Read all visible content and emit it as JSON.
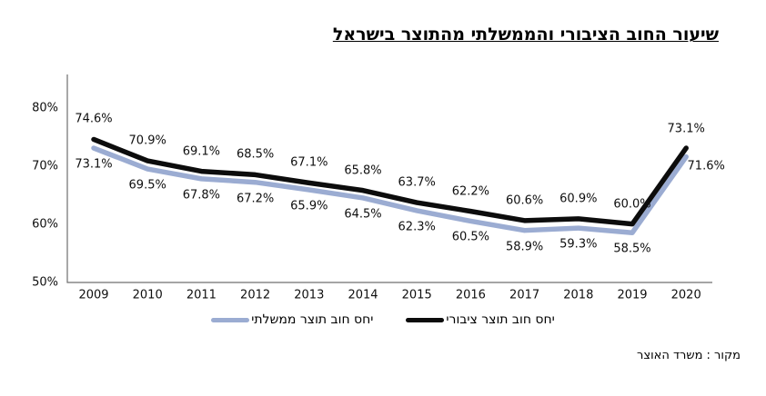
{
  "source_note": "מקור : משרד האוצר",
  "chart_data": {
    "type": "line",
    "title": "שיעור החוב הציבורי והממשלתי מהתוצר בישראל",
    "categories": [
      "2009",
      "2010",
      "2011",
      "2012",
      "2013",
      "2014",
      "2015",
      "2016",
      "2017",
      "2018",
      "2019",
      "2020"
    ],
    "series": [
      {
        "name": "יחס חוב תוצר ציבורי",
        "color": "#0c0c0c",
        "values": [
          74.6,
          70.9,
          69.1,
          68.5,
          67.1,
          65.8,
          63.7,
          62.2,
          60.6,
          60.9,
          60.0,
          73.1
        ]
      },
      {
        "name": "יחס חוב תוצר ממשלתי",
        "color": "#9bacd2",
        "values": [
          73.1,
          69.5,
          67.8,
          67.2,
          65.9,
          64.5,
          62.3,
          60.5,
          58.9,
          59.3,
          58.5,
          71.6
        ]
      }
    ],
    "ylim": [
      50,
      80
    ],
    "yticks": [
      {
        "label": "80%",
        "value": 80
      },
      {
        "label": "70%",
        "value": 70
      },
      {
        "label": "60%",
        "value": 60
      },
      {
        "label": "50%",
        "value": 50
      }
    ],
    "grid": false,
    "legend_position": "bottom",
    "data_labels": "one-decimal-percent",
    "axis_color": "#6f6f6f"
  }
}
